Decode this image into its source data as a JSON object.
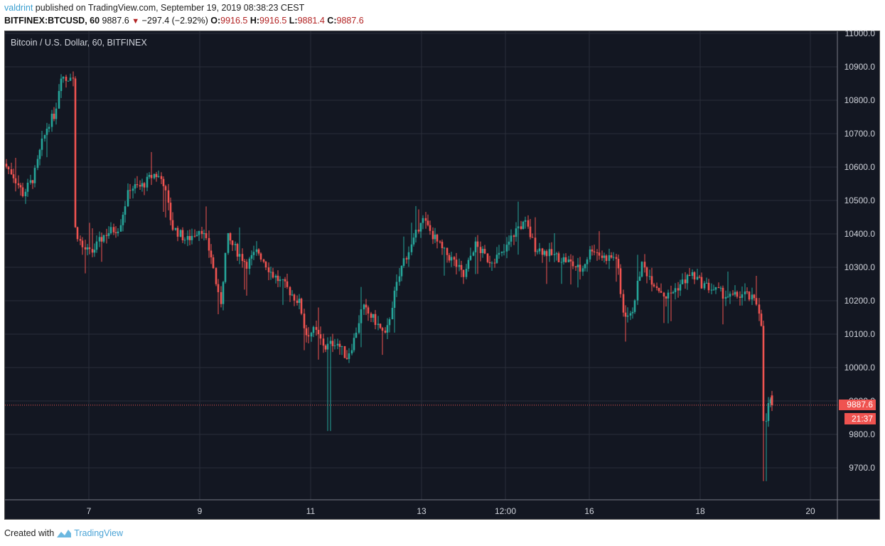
{
  "header": {
    "author": "valdrint",
    "published_text": "published on TradingView.com, September 19, 2019 08:38:23 CEST",
    "symbol": "BITFINEX:BTCUSD, 60",
    "last": "9887.6",
    "change": "−297.4 (−2.92%)",
    "open_label": "O:",
    "open": "9916.5",
    "high_label": "H:",
    "high": "9916.5",
    "low_label": "L:",
    "low": "9881.4",
    "close_label": "C:",
    "close": "9887.6",
    "down_icon": "▼"
  },
  "chart_legend": "Bitcoin / U.S. Dollar, 60, BITFINEX",
  "price_badge": "9887.6",
  "countdown_badge": "21:37",
  "footer": {
    "created_with": "Created with",
    "brand": "TradingView"
  },
  "colors": {
    "background": "#131722",
    "grid": "#2a2e39",
    "up": "#26a69a",
    "down": "#ef5350",
    "text": "#d1d4dc"
  },
  "chart_data": {
    "type": "candlestick",
    "title": "Bitcoin / U.S. Dollar, 60, BITFINEX",
    "xlabel": "",
    "ylabel": "",
    "ylim": [
      9600,
      11000
    ],
    "y_ticks": [
      "11000.0",
      "10900.0",
      "10800.0",
      "10700.0",
      "10600.0",
      "10500.0",
      "10400.0",
      "10300.0",
      "10200.0",
      "10100.0",
      "10000.0",
      "9900.0",
      "9800.0",
      "9700.0"
    ],
    "x_ticks": [
      "7",
      "9",
      "11",
      "13",
      "12:00",
      "16",
      "18",
      "20"
    ],
    "grid": true,
    "last_price_line": 9887.6,
    "approx_path": [
      {
        "label": "Sep 6 start",
        "price": 10600
      },
      {
        "label": "Sep 6 low",
        "price": 10510
      },
      {
        "label": "Sep 6 high",
        "price": 10920
      },
      {
        "label": "Sep 7 drop",
        "price": 10330
      },
      {
        "label": "Sep 8 high",
        "price": 10590
      },
      {
        "label": "Sep 9",
        "price": 10400
      },
      {
        "label": "Sep 10",
        "price": 10200
      },
      {
        "label": "Sep 11 low",
        "price": 9820
      },
      {
        "label": "Sep 12",
        "price": 10100
      },
      {
        "label": "Sep 13 high",
        "price": 10480
      },
      {
        "label": "Sep 14",
        "price": 10300
      },
      {
        "label": "Sep 15 high",
        "price": 10480
      },
      {
        "label": "Sep 16",
        "price": 10330
      },
      {
        "label": "Sep 17 low",
        "price": 10100
      },
      {
        "label": "Sep 17 high",
        "price": 10400
      },
      {
        "label": "Sep 18",
        "price": 10220
      },
      {
        "label": "Sep 19 low",
        "price": 9660
      },
      {
        "label": "Sep 19 last",
        "price": 9887.6
      }
    ]
  }
}
